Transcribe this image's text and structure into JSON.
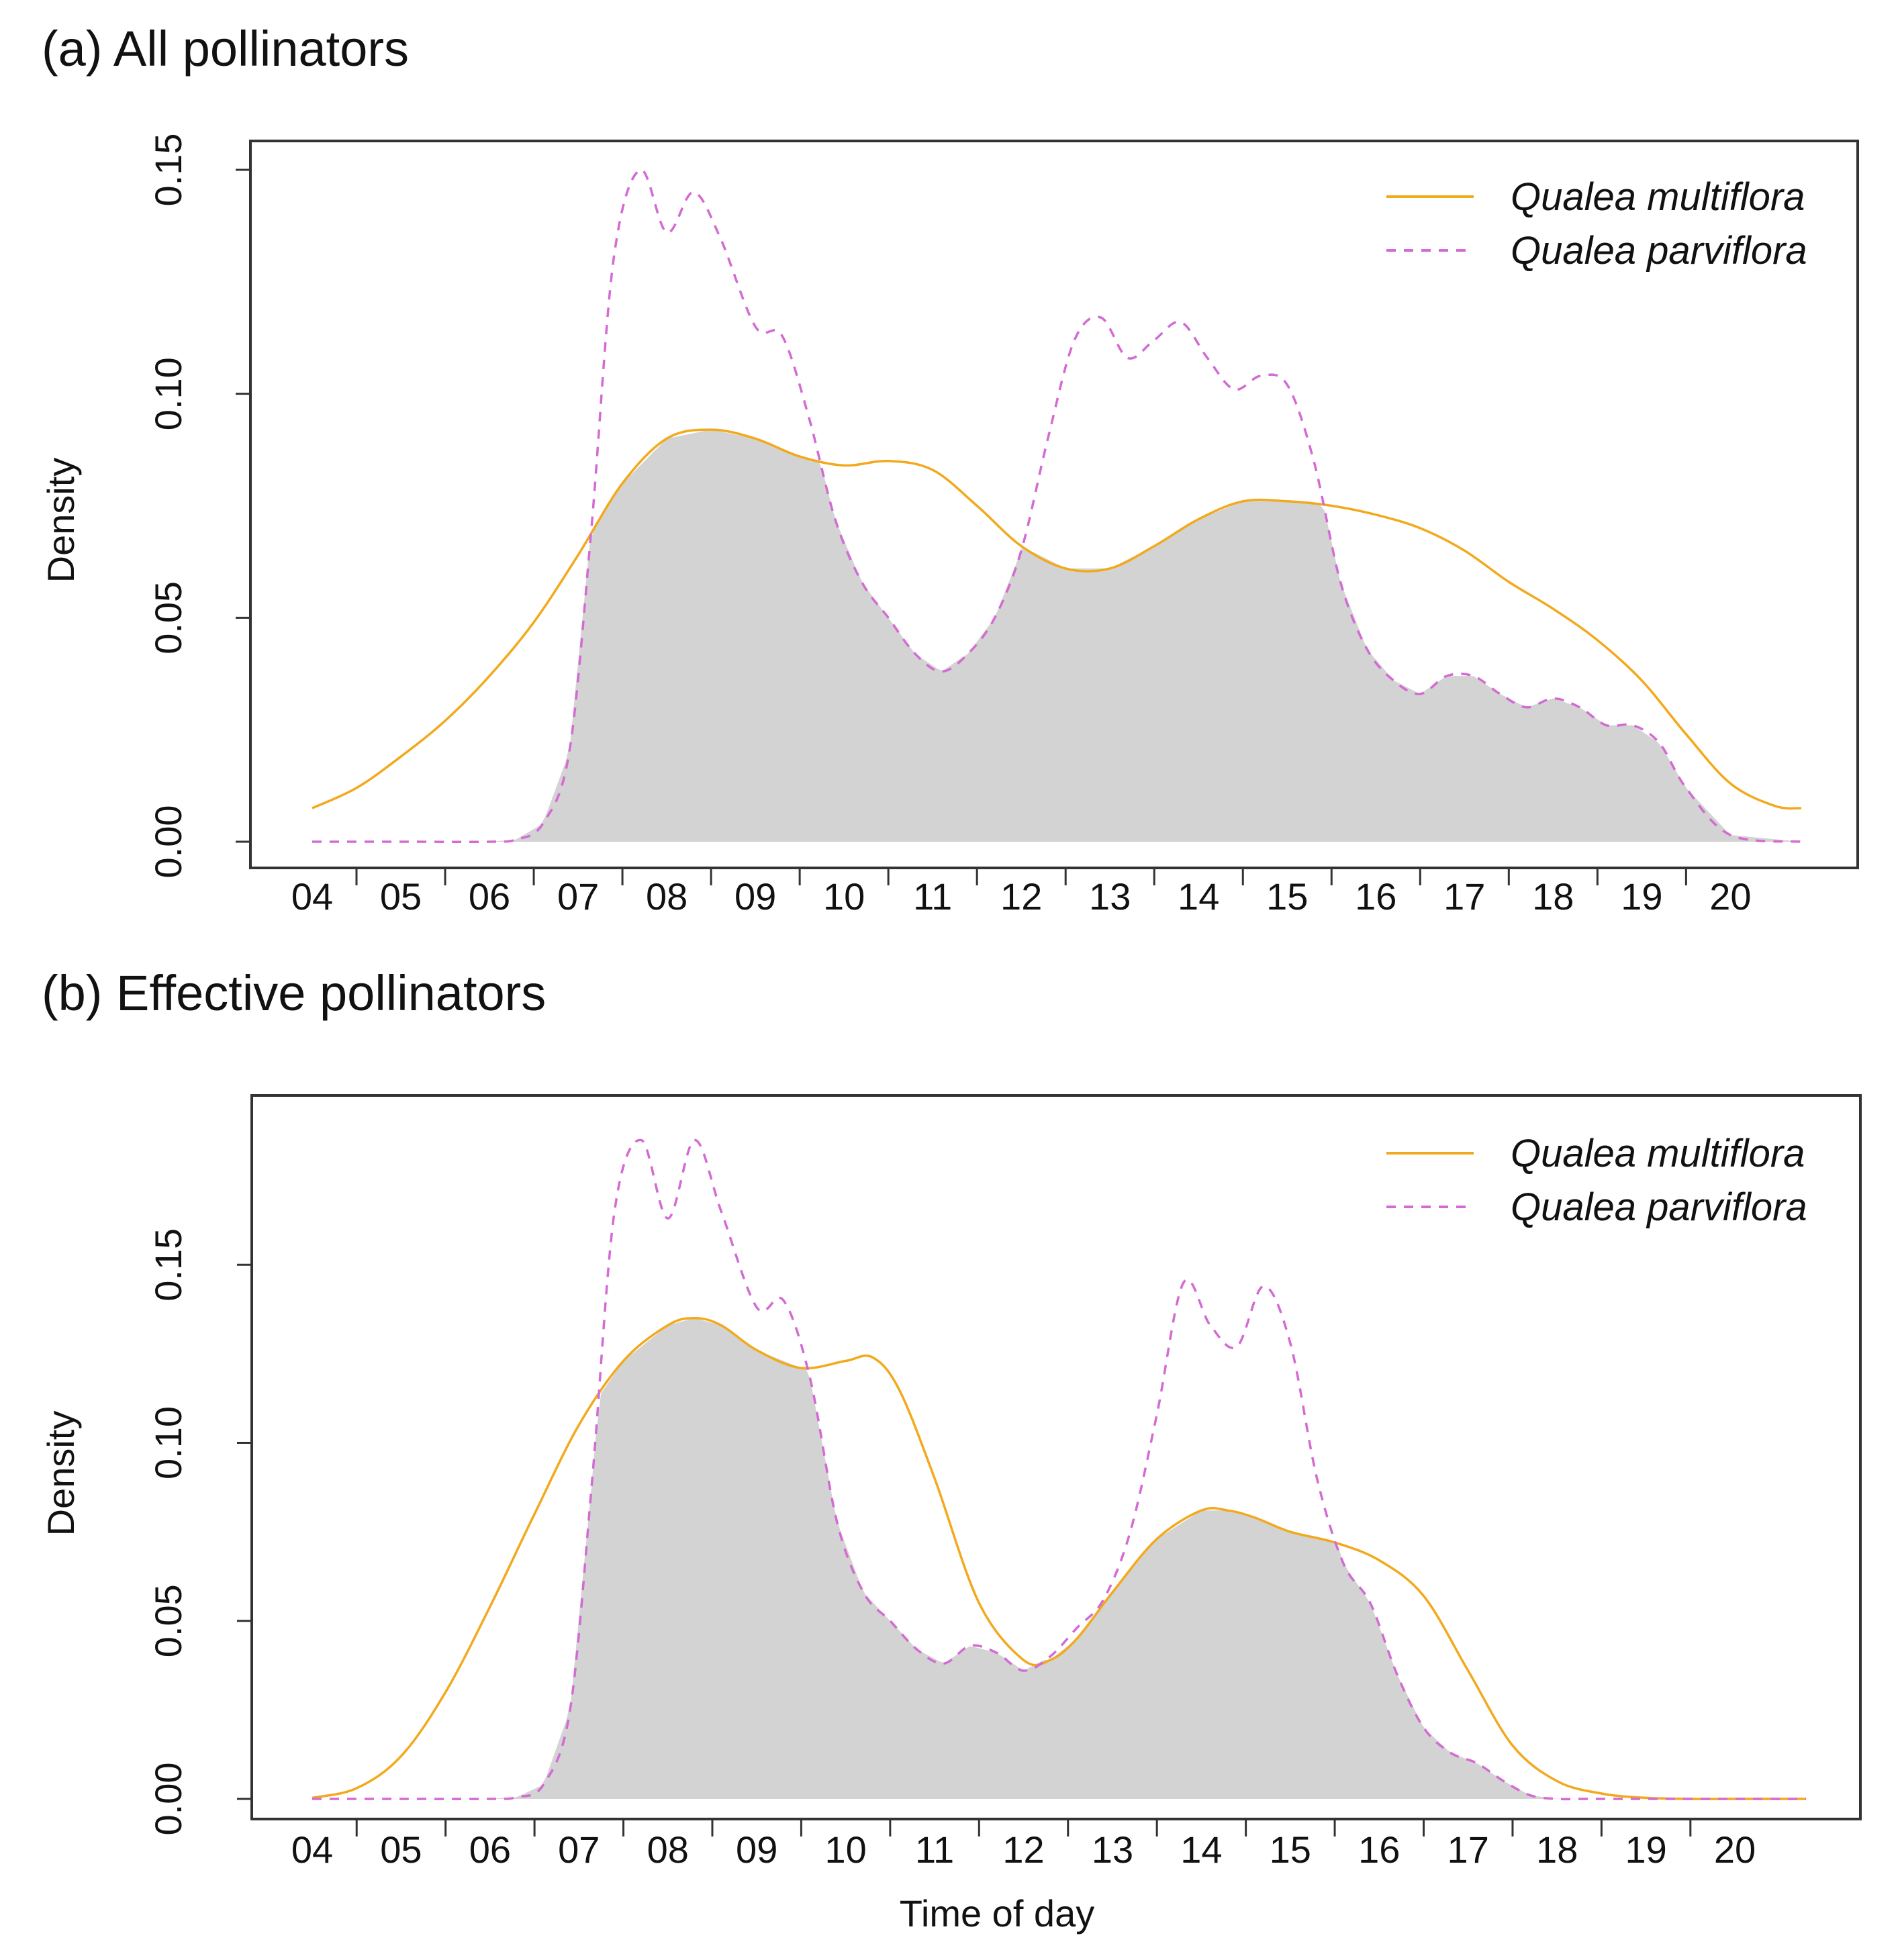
{
  "chart_data": [
    {
      "type": "line",
      "panel_title": "(a) All pollinators",
      "xlabel": "",
      "ylabel": "Density",
      "xlim": [
        4,
        21
      ],
      "ylim": [
        0,
        0.15
      ],
      "y_ticks": [
        "0.00",
        "0.05",
        "0.10",
        "0.15"
      ],
      "x_tick_labels": [
        "04",
        "05",
        "06",
        "07",
        "08",
        "09",
        "10",
        "11",
        "12",
        "13",
        "14",
        "15",
        "16",
        "17",
        "18",
        "19",
        "20"
      ],
      "overlap_fill_color": "#d3d3d3",
      "legend": {
        "position": "top-right",
        "entries": [
          "Qualea multiflora",
          "Qualea parviflora"
        ]
      },
      "series": [
        {
          "name": "Qualea multiflora",
          "style": "solid",
          "color": "#f2a91c",
          "x": [
            4.0,
            4.5,
            5.0,
            5.5,
            6.0,
            6.5,
            7.0,
            7.5,
            8.0,
            8.5,
            9.0,
            9.5,
            10.0,
            10.5,
            11.0,
            11.5,
            12.0,
            12.5,
            13.0,
            13.5,
            14.0,
            14.5,
            15.0,
            15.5,
            16.0,
            16.5,
            17.0,
            17.5,
            18.0,
            18.5,
            19.0,
            19.5,
            20.0,
            20.5,
            20.8
          ],
          "y": [
            0.0075,
            0.012,
            0.019,
            0.027,
            0.037,
            0.049,
            0.064,
            0.08,
            0.09,
            0.092,
            0.09,
            0.086,
            0.084,
            0.085,
            0.083,
            0.075,
            0.066,
            0.061,
            0.061,
            0.066,
            0.072,
            0.076,
            0.076,
            0.075,
            0.073,
            0.07,
            0.065,
            0.058,
            0.052,
            0.045,
            0.036,
            0.024,
            0.013,
            0.008,
            0.0075
          ]
        },
        {
          "name": "Qualea parviflora",
          "style": "dashed",
          "color": "#d46ad4",
          "x": [
            4.0,
            5.0,
            6.0,
            6.3,
            6.6,
            6.9,
            7.15,
            7.4,
            7.7,
            8.0,
            8.3,
            8.6,
            9.0,
            9.3,
            9.6,
            9.9,
            10.2,
            10.5,
            10.8,
            11.1,
            11.4,
            11.7,
            12.0,
            12.3,
            12.6,
            12.9,
            13.2,
            13.5,
            13.8,
            14.1,
            14.4,
            14.7,
            15.0,
            15.3,
            15.6,
            15.9,
            16.2,
            16.5,
            16.8,
            17.1,
            17.4,
            17.7,
            18.0,
            18.3,
            18.6,
            18.9,
            19.2,
            19.5,
            20.0,
            20.8
          ],
          "y": [
            0.0,
            0.0,
            0.0,
            0.0005,
            0.004,
            0.02,
            0.07,
            0.13,
            0.15,
            0.136,
            0.145,
            0.135,
            0.115,
            0.113,
            0.095,
            0.072,
            0.058,
            0.05,
            0.042,
            0.038,
            0.042,
            0.05,
            0.065,
            0.09,
            0.112,
            0.117,
            0.108,
            0.112,
            0.116,
            0.108,
            0.101,
            0.104,
            0.102,
            0.085,
            0.058,
            0.043,
            0.036,
            0.033,
            0.037,
            0.037,
            0.033,
            0.03,
            0.032,
            0.03,
            0.026,
            0.026,
            0.022,
            0.012,
            0.0015,
            0.0
          ]
        }
      ]
    },
    {
      "type": "line",
      "panel_title": "(b) Effective pollinators",
      "xlabel": "Time of day",
      "ylabel": "Density",
      "xlim": [
        4,
        21
      ],
      "ylim": [
        0,
        0.19
      ],
      "y_ticks": [
        "0.00",
        "0.05",
        "0.10",
        "0.15"
      ],
      "x_tick_labels": [
        "04",
        "05",
        "06",
        "07",
        "08",
        "09",
        "10",
        "11",
        "12",
        "13",
        "14",
        "15",
        "16",
        "17",
        "18",
        "19",
        "20"
      ],
      "overlap_fill_color": "#d3d3d3",
      "legend": {
        "position": "top-right",
        "entries": [
          "Qualea multiflora",
          "Qualea parviflora"
        ]
      },
      "series": [
        {
          "name": "Qualea multiflora",
          "style": "solid",
          "color": "#f2a91c",
          "x": [
            4.0,
            4.5,
            5.0,
            5.5,
            6.0,
            6.5,
            7.0,
            7.5,
            8.0,
            8.3,
            8.6,
            9.0,
            9.5,
            10.0,
            10.3,
            10.6,
            11.0,
            11.5,
            12.0,
            12.3,
            12.6,
            13.0,
            13.5,
            14.0,
            14.3,
            14.6,
            15.0,
            15.5,
            16.0,
            16.5,
            17.0,
            17.5,
            18.0,
            18.5,
            19.0,
            19.5,
            20.0,
            20.8
          ],
          "y": [
            0.0003,
            0.003,
            0.012,
            0.03,
            0.054,
            0.08,
            0.105,
            0.123,
            0.133,
            0.135,
            0.133,
            0.126,
            0.121,
            0.123,
            0.124,
            0.115,
            0.09,
            0.055,
            0.039,
            0.039,
            0.045,
            0.058,
            0.073,
            0.081,
            0.081,
            0.079,
            0.075,
            0.072,
            0.067,
            0.057,
            0.036,
            0.015,
            0.005,
            0.0015,
            0.0003,
            0.0,
            0.0,
            0.0
          ]
        },
        {
          "name": "Qualea parviflora",
          "style": "dashed",
          "color": "#d46ad4",
          "x": [
            4.0,
            5.0,
            6.0,
            6.3,
            6.6,
            6.9,
            7.15,
            7.4,
            7.7,
            8.0,
            8.3,
            8.6,
            9.0,
            9.3,
            9.6,
            9.9,
            10.2,
            10.5,
            10.8,
            11.1,
            11.4,
            11.7,
            12.0,
            12.3,
            12.6,
            12.9,
            13.2,
            13.5,
            13.8,
            14.1,
            14.4,
            14.7,
            15.0,
            15.3,
            15.6,
            15.9,
            16.2,
            16.5,
            16.8,
            17.1,
            17.4,
            17.7,
            18.0,
            18.3,
            18.6,
            19.0,
            20.0,
            20.8
          ],
          "y": [
            0.0,
            0.0,
            0.0,
            0.0005,
            0.004,
            0.025,
            0.09,
            0.165,
            0.185,
            0.163,
            0.185,
            0.165,
            0.138,
            0.14,
            0.118,
            0.078,
            0.058,
            0.05,
            0.042,
            0.038,
            0.043,
            0.041,
            0.036,
            0.04,
            0.048,
            0.056,
            0.075,
            0.108,
            0.145,
            0.133,
            0.127,
            0.144,
            0.128,
            0.09,
            0.066,
            0.055,
            0.035,
            0.02,
            0.013,
            0.01,
            0.005,
            0.001,
            0.0,
            0.0,
            0.0,
            0.0,
            0.0,
            0.0
          ]
        }
      ]
    }
  ]
}
